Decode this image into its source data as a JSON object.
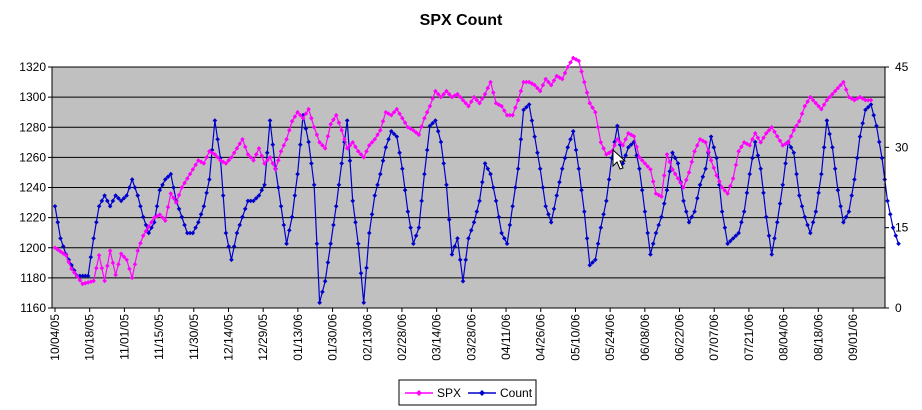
{
  "chart_data": {
    "type": "line",
    "title": "SPX Count",
    "xlabel": "",
    "ylabel": "",
    "x_tick_labels": [
      "10/04/05",
      "10/18/05",
      "11/01/05",
      "11/15/05",
      "11/30/05",
      "12/14/05",
      "12/29/05",
      "01/13/06",
      "01/30/06",
      "02/13/06",
      "02/28/06",
      "03/14/06",
      "03/28/06",
      "04/11/06",
      "04/26/06",
      "05/10/06",
      "05/24/06",
      "06/08/06",
      "06/22/06",
      "07/07/06",
      "07/21/06",
      "08/04/06",
      "08/18/06",
      "09/01/06"
    ],
    "ylim_left": [
      1160,
      1320
    ],
    "ylim_right": [
      0,
      45
    ],
    "y_ticks_left": [
      1160,
      1180,
      1200,
      1220,
      1240,
      1260,
      1280,
      1300,
      1320
    ],
    "y_ticks_right": [
      0,
      15,
      30,
      45
    ],
    "grid": true,
    "legend_position": "bottom",
    "colors": {
      "plot_bg": "#c0c0c0",
      "spx": "#ff00ff",
      "count": "#0000cc"
    },
    "series": [
      {
        "name": "SPX",
        "axis": "left",
        "color": "#ff00ff",
        "anchors": [
          [
            0,
            1200
          ],
          [
            4,
            1195
          ],
          [
            6,
            1186
          ],
          [
            10,
            1176
          ],
          [
            14,
            1178
          ],
          [
            16,
            1195
          ],
          [
            18,
            1178
          ],
          [
            20,
            1198
          ],
          [
            22,
            1182
          ],
          [
            24,
            1196
          ],
          [
            26,
            1192
          ],
          [
            28,
            1180
          ],
          [
            30,
            1198
          ],
          [
            32,
            1208
          ],
          [
            34,
            1214
          ],
          [
            36,
            1220
          ],
          [
            38,
            1222
          ],
          [
            40,
            1218
          ],
          [
            42,
            1236
          ],
          [
            44,
            1230
          ],
          [
            46,
            1240
          ],
          [
            48,
            1246
          ],
          [
            50,
            1252
          ],
          [
            52,
            1258
          ],
          [
            54,
            1256
          ],
          [
            56,
            1264
          ],
          [
            58,
            1262
          ],
          [
            60,
            1258
          ],
          [
            62,
            1256
          ],
          [
            64,
            1260
          ],
          [
            66,
            1266
          ],
          [
            68,
            1272
          ],
          [
            70,
            1262
          ],
          [
            72,
            1258
          ],
          [
            74,
            1266
          ],
          [
            76,
            1256
          ],
          [
            78,
            1260
          ],
          [
            80,
            1252
          ],
          [
            82,
            1264
          ],
          [
            84,
            1272
          ],
          [
            86,
            1284
          ],
          [
            88,
            1290
          ],
          [
            90,
            1286
          ],
          [
            92,
            1292
          ],
          [
            94,
            1280
          ],
          [
            96,
            1270
          ],
          [
            98,
            1266
          ],
          [
            100,
            1282
          ],
          [
            102,
            1288
          ],
          [
            104,
            1278
          ],
          [
            106,
            1266
          ],
          [
            108,
            1270
          ],
          [
            110,
            1264
          ],
          [
            112,
            1260
          ],
          [
            114,
            1268
          ],
          [
            116,
            1272
          ],
          [
            118,
            1278
          ],
          [
            120,
            1290
          ],
          [
            122,
            1288
          ],
          [
            124,
            1292
          ],
          [
            126,
            1286
          ],
          [
            128,
            1280
          ],
          [
            130,
            1278
          ],
          [
            132,
            1275
          ],
          [
            134,
            1286
          ],
          [
            136,
            1294
          ],
          [
            138,
            1304
          ],
          [
            140,
            1300
          ],
          [
            142,
            1304
          ],
          [
            144,
            1300
          ],
          [
            146,
            1302
          ],
          [
            148,
            1298
          ],
          [
            150,
            1294
          ],
          [
            152,
            1300
          ],
          [
            154,
            1296
          ],
          [
            156,
            1302
          ],
          [
            158,
            1310
          ],
          [
            160,
            1296
          ],
          [
            162,
            1294
          ],
          [
            164,
            1288
          ],
          [
            166,
            1288
          ],
          [
            168,
            1298
          ],
          [
            170,
            1310
          ],
          [
            172,
            1310
          ],
          [
            174,
            1308
          ],
          [
            176,
            1304
          ],
          [
            178,
            1312
          ],
          [
            180,
            1308
          ],
          [
            182,
            1314
          ],
          [
            184,
            1312
          ],
          [
            186,
            1320
          ],
          [
            188,
            1326
          ],
          [
            190,
            1324
          ],
          [
            192,
            1310
          ],
          [
            194,
            1296
          ],
          [
            196,
            1290
          ],
          [
            198,
            1270
          ],
          [
            200,
            1262
          ],
          [
            202,
            1264
          ],
          [
            204,
            1272
          ],
          [
            206,
            1268
          ],
          [
            208,
            1276
          ],
          [
            210,
            1274
          ],
          [
            212,
            1260
          ],
          [
            214,
            1256
          ],
          [
            216,
            1252
          ],
          [
            218,
            1236
          ],
          [
            220,
            1234
          ],
          [
            222,
            1262
          ],
          [
            224,
            1252
          ],
          [
            226,
            1246
          ],
          [
            228,
            1240
          ],
          [
            230,
            1250
          ],
          [
            232,
            1264
          ],
          [
            234,
            1272
          ],
          [
            236,
            1270
          ],
          [
            238,
            1258
          ],
          [
            240,
            1248
          ],
          [
            242,
            1240
          ],
          [
            244,
            1236
          ],
          [
            246,
            1246
          ],
          [
            248,
            1264
          ],
          [
            250,
            1270
          ],
          [
            252,
            1268
          ],
          [
            254,
            1276
          ],
          [
            256,
            1270
          ],
          [
            258,
            1276
          ],
          [
            260,
            1280
          ],
          [
            262,
            1274
          ],
          [
            264,
            1268
          ],
          [
            266,
            1270
          ],
          [
            268,
            1278
          ],
          [
            270,
            1284
          ],
          [
            272,
            1294
          ],
          [
            274,
            1300
          ],
          [
            276,
            1296
          ],
          [
            278,
            1292
          ],
          [
            280,
            1298
          ],
          [
            282,
            1302
          ],
          [
            284,
            1306
          ],
          [
            286,
            1310
          ],
          [
            288,
            1300
          ],
          [
            290,
            1298
          ],
          [
            292,
            1300
          ],
          [
            294,
            1298
          ],
          [
            296,
            1298
          ]
        ]
      },
      {
        "name": "Count",
        "axis": "right",
        "color": "#0000cc",
        "anchors": [
          [
            0,
            19
          ],
          [
            2,
            13
          ],
          [
            4,
            10
          ],
          [
            6,
            8
          ],
          [
            8,
            6
          ],
          [
            10,
            6
          ],
          [
            12,
            6
          ],
          [
            14,
            13
          ],
          [
            16,
            19
          ],
          [
            18,
            21
          ],
          [
            20,
            19
          ],
          [
            22,
            21
          ],
          [
            24,
            20
          ],
          [
            26,
            21
          ],
          [
            28,
            24
          ],
          [
            30,
            21
          ],
          [
            32,
            17
          ],
          [
            34,
            14
          ],
          [
            36,
            16
          ],
          [
            38,
            22
          ],
          [
            40,
            24
          ],
          [
            42,
            25
          ],
          [
            44,
            20
          ],
          [
            46,
            17
          ],
          [
            48,
            14
          ],
          [
            50,
            14
          ],
          [
            52,
            16
          ],
          [
            54,
            19
          ],
          [
            56,
            24
          ],
          [
            58,
            35
          ],
          [
            60,
            28
          ],
          [
            62,
            14
          ],
          [
            64,
            9
          ],
          [
            66,
            14
          ],
          [
            68,
            17
          ],
          [
            70,
            20
          ],
          [
            72,
            20
          ],
          [
            74,
            21
          ],
          [
            76,
            23
          ],
          [
            78,
            35
          ],
          [
            80,
            26
          ],
          [
            82,
            19
          ],
          [
            84,
            12
          ],
          [
            86,
            17
          ],
          [
            88,
            25
          ],
          [
            90,
            36
          ],
          [
            92,
            31
          ],
          [
            94,
            23
          ],
          [
            96,
            1
          ],
          [
            98,
            5
          ],
          [
            100,
            12
          ],
          [
            102,
            19
          ],
          [
            104,
            27
          ],
          [
            106,
            35
          ],
          [
            108,
            20
          ],
          [
            110,
            12
          ],
          [
            112,
            1
          ],
          [
            114,
            14
          ],
          [
            116,
            21
          ],
          [
            118,
            25
          ],
          [
            120,
            30
          ],
          [
            122,
            33
          ],
          [
            124,
            32
          ],
          [
            126,
            26
          ],
          [
            128,
            18
          ],
          [
            130,
            12
          ],
          [
            132,
            15
          ],
          [
            134,
            25
          ],
          [
            136,
            34
          ],
          [
            138,
            35
          ],
          [
            140,
            31
          ],
          [
            142,
            23
          ],
          [
            144,
            10
          ],
          [
            146,
            13
          ],
          [
            148,
            5
          ],
          [
            150,
            13
          ],
          [
            152,
            16
          ],
          [
            154,
            20
          ],
          [
            156,
            27
          ],
          [
            158,
            25
          ],
          [
            160,
            20
          ],
          [
            162,
            14
          ],
          [
            164,
            12
          ],
          [
            166,
            19
          ],
          [
            168,
            26
          ],
          [
            170,
            37
          ],
          [
            172,
            38
          ],
          [
            174,
            32
          ],
          [
            176,
            26
          ],
          [
            178,
            19
          ],
          [
            180,
            16
          ],
          [
            182,
            21
          ],
          [
            184,
            26
          ],
          [
            186,
            30
          ],
          [
            188,
            33
          ],
          [
            190,
            26
          ],
          [
            192,
            18
          ],
          [
            194,
            8
          ],
          [
            196,
            9
          ],
          [
            198,
            15
          ],
          [
            200,
            20
          ],
          [
            202,
            28
          ],
          [
            204,
            34
          ],
          [
            206,
            27
          ],
          [
            208,
            30
          ],
          [
            210,
            31
          ],
          [
            212,
            26
          ],
          [
            214,
            18
          ],
          [
            216,
            10
          ],
          [
            218,
            14
          ],
          [
            220,
            17
          ],
          [
            222,
            22
          ],
          [
            224,
            29
          ],
          [
            226,
            27
          ],
          [
            228,
            20
          ],
          [
            230,
            16
          ],
          [
            232,
            18
          ],
          [
            234,
            23
          ],
          [
            236,
            26
          ],
          [
            238,
            32
          ],
          [
            240,
            28
          ],
          [
            242,
            18
          ],
          [
            244,
            12
          ],
          [
            246,
            13
          ],
          [
            248,
            14
          ],
          [
            250,
            18
          ],
          [
            252,
            25
          ],
          [
            254,
            31
          ],
          [
            256,
            26
          ],
          [
            258,
            17
          ],
          [
            260,
            10
          ],
          [
            262,
            16
          ],
          [
            264,
            23
          ],
          [
            266,
            31
          ],
          [
            268,
            29
          ],
          [
            270,
            21
          ],
          [
            272,
            17
          ],
          [
            274,
            14
          ],
          [
            276,
            18
          ],
          [
            278,
            25
          ],
          [
            280,
            35
          ],
          [
            282,
            30
          ],
          [
            284,
            22
          ],
          [
            286,
            16
          ],
          [
            288,
            18
          ],
          [
            290,
            24
          ],
          [
            292,
            32
          ],
          [
            294,
            37
          ],
          [
            296,
            38
          ],
          [
            298,
            34
          ],
          [
            300,
            28
          ],
          [
            302,
            20
          ],
          [
            304,
            15
          ],
          [
            306,
            12
          ]
        ]
      }
    ]
  },
  "legend": {
    "items": [
      "SPX",
      "Count"
    ]
  }
}
